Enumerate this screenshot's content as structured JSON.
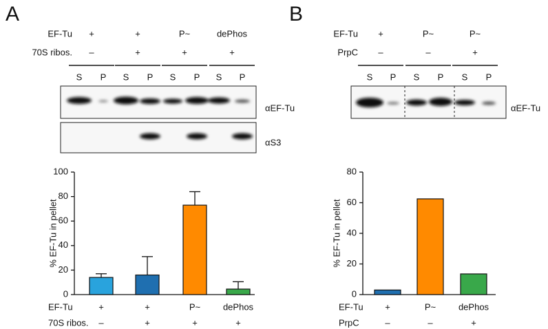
{
  "panels": [
    {
      "label": "A",
      "conditions": [
        {
          "name": "EF-Tu",
          "values": [
            "+",
            "+",
            "P~",
            "dePhos"
          ]
        },
        {
          "name": "70S ribos.",
          "values": [
            "–",
            "+",
            "+",
            "+"
          ]
        }
      ],
      "lanes": [
        "S",
        "P",
        "S",
        "P",
        "S",
        "P",
        "S",
        "P"
      ],
      "antibodies": [
        "αEF-Tu",
        "αS3"
      ]
    },
    {
      "label": "B",
      "conditions": [
        {
          "name": "EF-Tu",
          "values": [
            "+",
            "P~",
            "P~"
          ]
        },
        {
          "name": "PrpC",
          "values": [
            "–",
            "–",
            "+"
          ]
        }
      ],
      "lanes": [
        "S",
        "P",
        "S",
        "P",
        "S",
        "P"
      ],
      "antibodies": [
        "αEF-Tu"
      ]
    }
  ],
  "chart_data": [
    {
      "type": "bar",
      "y_label": "% EF-Tu in pellet",
      "row_labels": [
        "EF-Tu",
        "70S ribos."
      ],
      "categories": [
        [
          "+",
          "–"
        ],
        [
          "+",
          "+"
        ],
        [
          "P~",
          "+"
        ],
        [
          "dePhos",
          "+"
        ]
      ],
      "values": [
        14,
        16,
        73,
        4.5
      ],
      "errors": [
        3,
        15,
        11,
        6
      ],
      "colors": [
        "#29a3dd",
        "#1f6fb0",
        "#ff8a00",
        "#39a84a"
      ],
      "ylim": [
        0,
        100
      ],
      "yticks": [
        0,
        20,
        40,
        60,
        80,
        100
      ]
    },
    {
      "type": "bar",
      "y_label": "% EF-Tu in pellet",
      "row_labels": [
        "EF-Tu",
        "PrpC"
      ],
      "categories": [
        [
          "+",
          "–"
        ],
        [
          "P~",
          "–"
        ],
        [
          "dePhos",
          "+"
        ]
      ],
      "values": [
        3,
        62.5,
        13.5
      ],
      "colors": [
        "#1f6fb0",
        "#ff8a00",
        "#39a84a"
      ],
      "ylim": [
        0,
        80
      ],
      "yticks": [
        0,
        20,
        40,
        60,
        80
      ]
    }
  ]
}
